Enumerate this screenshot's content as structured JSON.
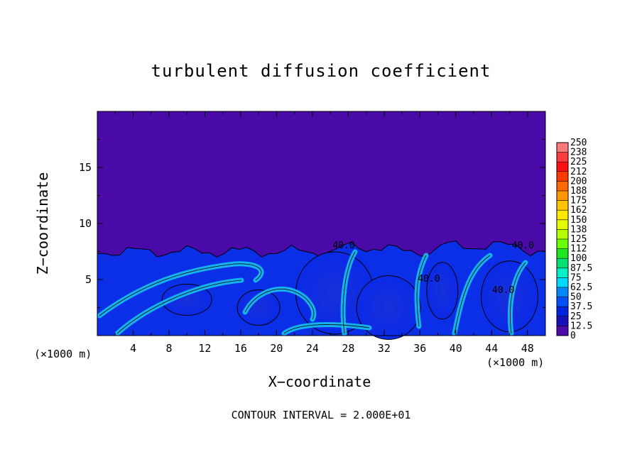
{
  "chart_data": {
    "type": "heatmap",
    "title": "turbulent diffusion coefficient",
    "xlabel": "X−coordinate",
    "ylabel": "Z−coordinate",
    "x_unit_label": "(×1000 m)",
    "xlim": [
      0,
      50
    ],
    "ylim": [
      0,
      20
    ],
    "x_ticks": [
      4,
      8,
      12,
      16,
      20,
      24,
      28,
      32,
      36,
      40,
      44,
      48
    ],
    "y_ticks": [
      5,
      10,
      15
    ],
    "contour_interval_text": "CONTOUR INTERVAL = 2.000E+01",
    "contour_labels": [
      {
        "text": "40.0",
        "x": 27.5,
        "z": 7.8
      },
      {
        "text": "40.0",
        "x": 47.5,
        "z": 7.8
      },
      {
        "text": "40.0",
        "x": 45.3,
        "z": 3.8
      },
      {
        "text": "40.0",
        "x": 37.0,
        "z": 4.8
      }
    ],
    "colorbar": {
      "labels": [
        "250",
        "238",
        "225",
        "212",
        "200",
        "188",
        "175",
        "162",
        "150",
        "138",
        "125",
        "112",
        "100",
        "87.5",
        "75",
        "62.5",
        "50",
        "37.5",
        "25",
        "12.5",
        "0"
      ],
      "colors": [
        "#ff7a7a",
        "#ff3c3c",
        "#ff1010",
        "#ff3a00",
        "#ff6a00",
        "#ff9800",
        "#ffc400",
        "#ffe800",
        "#e6ff00",
        "#b4ff00",
        "#6cff00",
        "#20e820",
        "#00e070",
        "#00f0c8",
        "#00d8ff",
        "#0088ff",
        "#0050ff",
        "#0024e0",
        "#1a10b8",
        "#4a0aa8"
      ]
    },
    "background_value": 0,
    "turbulent_layer_top_z": 7.5
  }
}
